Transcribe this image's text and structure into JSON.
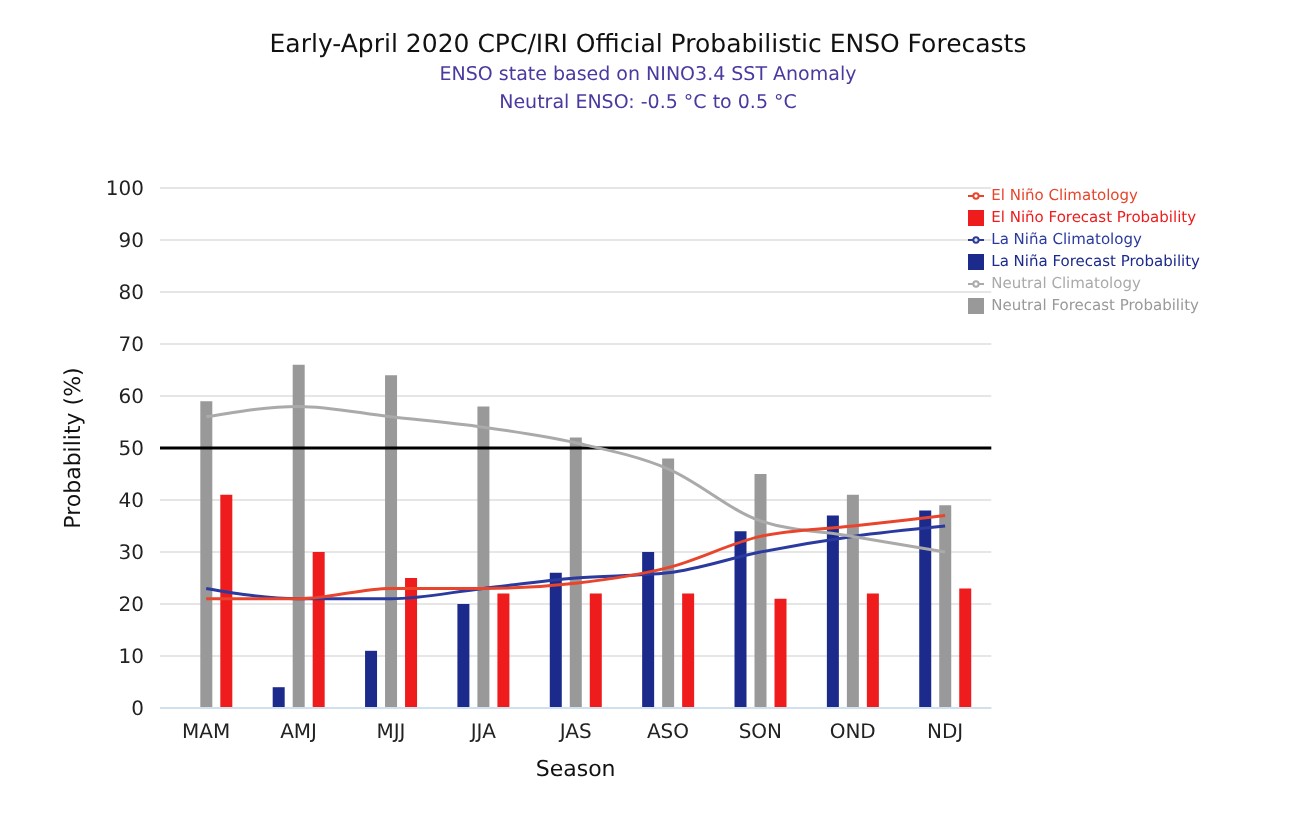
{
  "chart_data": {
    "type": "bar",
    "title": "Early-April 2020 CPC/IRI Official Probabilistic ENSO Forecasts",
    "subtitle": "ENSO state based on NINO3.4 SST Anomaly\nNeutral ENSO: -0.5 °C to 0.5 °C",
    "xlabel": "Season",
    "ylabel": "Probability (%)",
    "categories": [
      "MAM",
      "AMJ",
      "MJJ",
      "JJA",
      "JAS",
      "ASO",
      "SON",
      "OND",
      "NDJ"
    ],
    "series": [
      {
        "name": "La Niña Forecast Probability",
        "color": "#1c2a8c",
        "values": [
          0,
          4,
          11,
          20,
          26,
          30,
          34,
          37,
          38
        ]
      },
      {
        "name": "Neutral Forecast Probability",
        "color": "#999999",
        "values": [
          59,
          66,
          64,
          58,
          52,
          48,
          45,
          41,
          39
        ]
      },
      {
        "name": "El Niño Forecast Probability",
        "color": "#ee1c1c",
        "values": [
          41,
          30,
          25,
          22,
          22,
          22,
          21,
          22,
          23
        ]
      },
      {
        "name": "La Niña Climatology",
        "type": "line",
        "color": "#2b3a9e",
        "values": [
          23,
          21,
          21,
          23,
          25,
          26,
          30,
          33,
          35
        ]
      },
      {
        "name": "Neutral Climatology",
        "type": "line",
        "color": "#aaaaaa",
        "values": [
          56,
          58,
          56,
          54,
          51,
          46,
          36,
          33,
          30
        ]
      },
      {
        "name": "El Niño Climatology",
        "type": "line",
        "color": "#e8452c",
        "values": [
          21,
          21,
          23,
          23,
          24,
          27,
          33,
          35,
          37
        ]
      }
    ],
    "ylim": [
      0,
      100
    ],
    "yticks": [
      0,
      10,
      20,
      30,
      40,
      50,
      60,
      70,
      80,
      90,
      100
    ],
    "grid": "y",
    "legend": "top right",
    "marker": "none",
    "ref_lines": [
      {
        "axis": "y",
        "value": 50,
        "color": "#000000"
      }
    ]
  }
}
